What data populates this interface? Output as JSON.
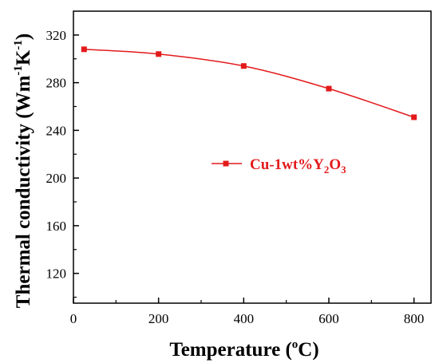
{
  "chart_data": {
    "type": "line",
    "xlabel": "Temperature (",
    "xlabel_sup": "o",
    "xlabel_tail": "C)",
    "ylabel": "Thermal conductivity (Wm",
    "ylabel_sup1": "-1",
    "ylabel_mid": "K",
    "ylabel_sup2": "-1",
    "ylabel_tail": ")",
    "xlim": [
      0,
      840
    ],
    "ylim": [
      95,
      340
    ],
    "x_ticks": [
      0,
      200,
      400,
      600,
      800
    ],
    "y_ticks": [
      120,
      160,
      200,
      240,
      280,
      320
    ],
    "x_tick_labels": [
      "0",
      "200",
      "400",
      "600",
      "800"
    ],
    "y_tick_labels": [
      "120",
      "160",
      "200",
      "240",
      "280",
      "320"
    ],
    "legend_position": "center-right",
    "grid": false,
    "series": [
      {
        "name": "Cu-1wt%Y",
        "name_sub1": "2",
        "name_mid": "O",
        "name_sub2": "3",
        "color": "#e31a1c",
        "marker": "square",
        "x": [
          25,
          200,
          400,
          600,
          800
        ],
        "y": [
          308,
          304,
          294,
          275,
          251
        ]
      }
    ]
  }
}
